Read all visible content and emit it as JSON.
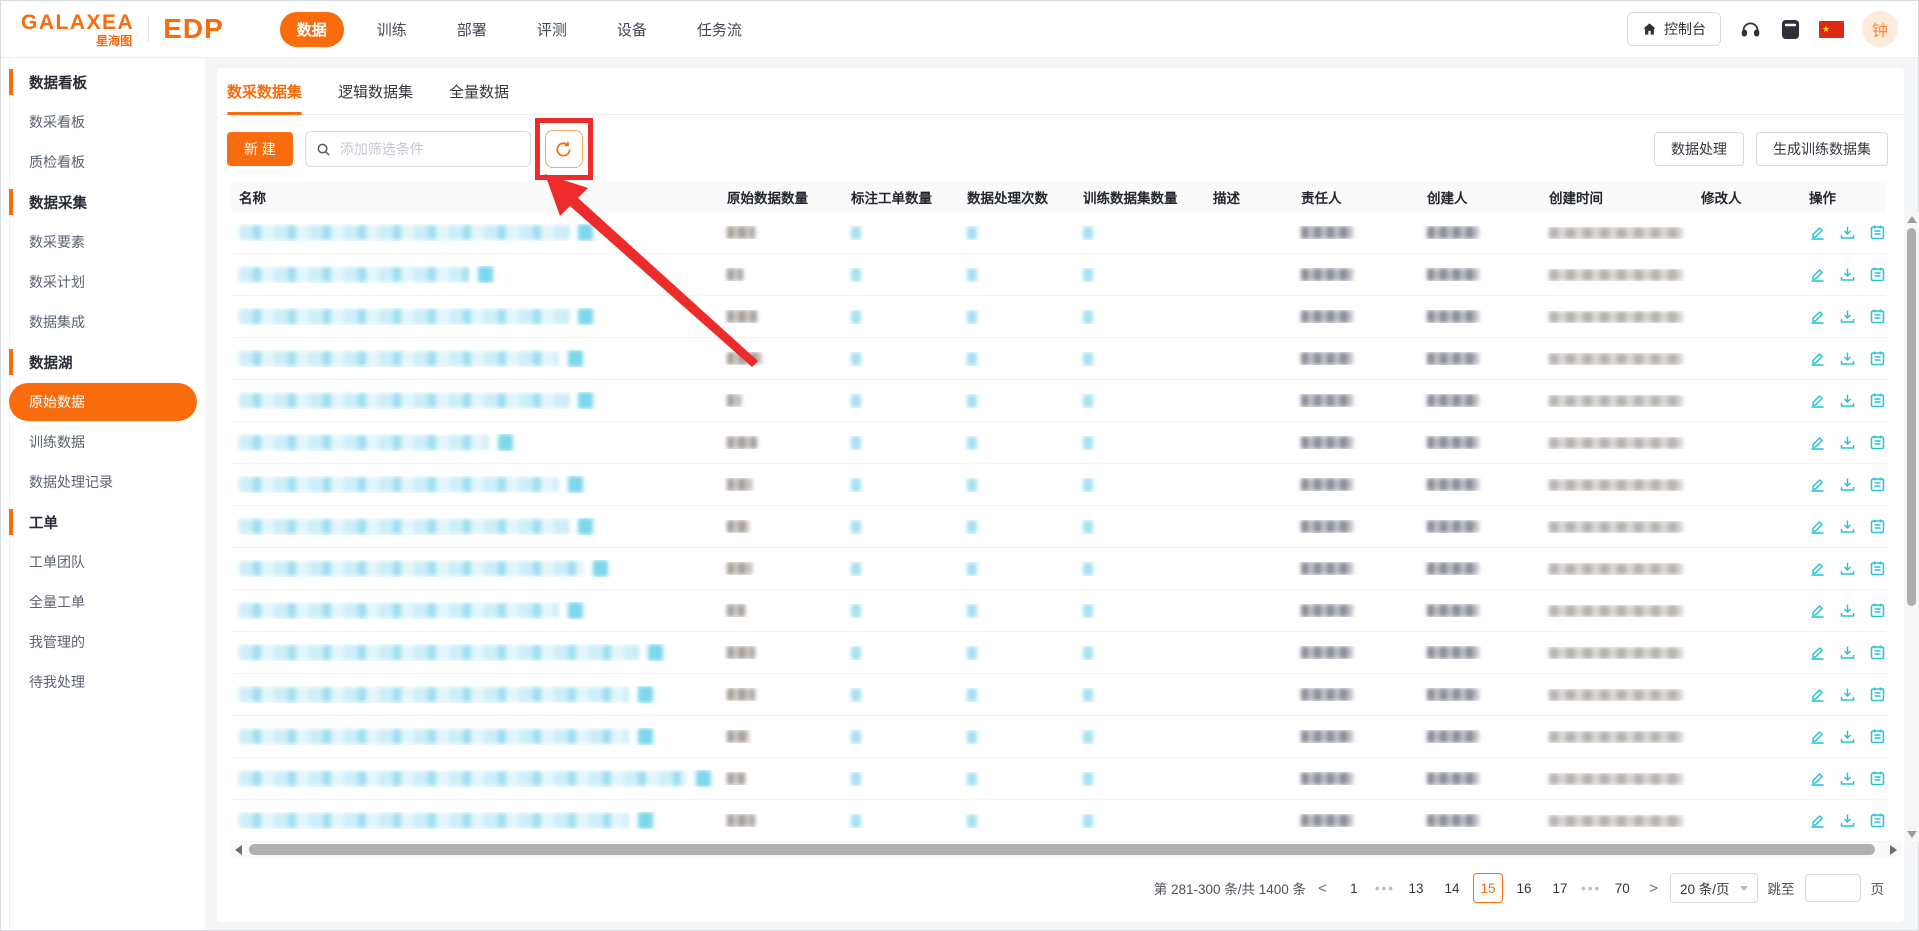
{
  "brand": {
    "logo_main": "GALAXEA",
    "logo_sub": "星海图",
    "product": "EDP"
  },
  "top_nav": {
    "items": [
      {
        "label": "数据",
        "active": true
      },
      {
        "label": "训练",
        "active": false
      },
      {
        "label": "部署",
        "active": false
      },
      {
        "label": "评测",
        "active": false
      },
      {
        "label": "设备",
        "active": false
      },
      {
        "label": "任务流",
        "active": false
      }
    ],
    "console_label": "控制台",
    "avatar_text": "钟"
  },
  "sidebar": {
    "active_item": "原始数据",
    "groups": [
      {
        "header": "数据看板",
        "items": [
          "数采看板",
          "质检看板"
        ]
      },
      {
        "header": "数据采集",
        "items": [
          "数采要素",
          "数采计划",
          "数据集成"
        ]
      },
      {
        "header": "数据湖",
        "items": [
          "原始数据",
          "训练数据",
          "数据处理记录"
        ]
      },
      {
        "header": "工单",
        "items": [
          "工单团队",
          "全量工单",
          "我管理的",
          "待我处理"
        ]
      }
    ]
  },
  "tabs": {
    "active": "数采数据集",
    "items": [
      "数采数据集",
      "逻辑数据集",
      "全量数据"
    ]
  },
  "toolbar": {
    "new_button": "新 建",
    "search_placeholder": "添加筛选条件",
    "actions": [
      "数据处理",
      "生成训练数据集"
    ]
  },
  "table": {
    "columns": [
      "名称",
      "原始数据数量",
      "标注工单数量",
      "数据处理次数",
      "训练数据集数量",
      "描述",
      "责任人",
      "创建人",
      "创建时间",
      "修改人",
      "操作"
    ],
    "redacted": true,
    "rows": [
      {
        "name_w": 330,
        "raw_w": 28
      },
      {
        "name_w": 230,
        "raw_w": 16
      },
      {
        "name_w": 330,
        "raw_w": 30
      },
      {
        "name_w": 320,
        "raw_w": 35
      },
      {
        "name_w": 330,
        "raw_w": 14
      },
      {
        "name_w": 250,
        "raw_w": 30
      },
      {
        "name_w": 320,
        "raw_w": 25
      },
      {
        "name_w": 330,
        "raw_w": 22
      },
      {
        "name_w": 345,
        "raw_w": 25
      },
      {
        "name_w": 320,
        "raw_w": 18
      },
      {
        "name_w": 400,
        "raw_w": 28
      },
      {
        "name_w": 390,
        "raw_w": 28
      },
      {
        "name_w": 390,
        "raw_w": 22
      },
      {
        "name_w": 450,
        "raw_w": 18
      },
      {
        "name_w": 390,
        "raw_w": 28
      }
    ]
  },
  "pagination": {
    "summary": "第 281-300 条/共 1400 条",
    "prev": "<",
    "next": ">",
    "pages": [
      "1",
      "•••",
      "13",
      "14",
      "15",
      "16",
      "17",
      "•••",
      "70"
    ],
    "active_page": "15",
    "page_size": "20 条/页",
    "jump_label": "跳至",
    "page_suffix": "页"
  },
  "colors": {
    "primary": "#f96c0e",
    "action_cyan": "#29c3d7",
    "annotation_red": "#ee2b2b"
  }
}
